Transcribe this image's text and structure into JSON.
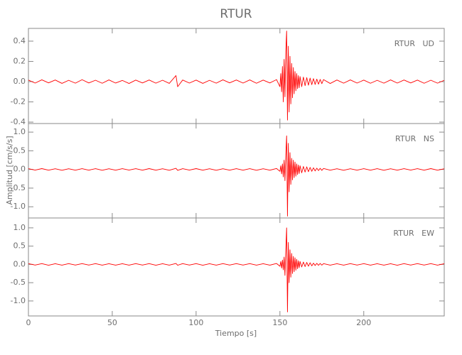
{
  "chart_data": [
    {
      "type": "line",
      "title": "RTUR",
      "label": "RTUR   UD",
      "color": "#ff0000",
      "xlim": [
        0,
        248
      ],
      "ylim": [
        -0.414,
        0.526
      ],
      "yticks": [
        -0.4,
        -0.2,
        {
          "value": 0,
          "label": "0.0"
        },
        0.2,
        0.4
      ],
      "x": [
        0,
        4,
        8,
        12,
        16,
        20,
        24,
        28,
        32,
        36,
        40,
        44,
        48,
        52,
        56,
        60,
        64,
        68,
        72,
        76,
        80,
        84,
        88,
        89,
        92,
        96,
        100,
        104,
        108,
        112,
        116,
        120,
        124,
        128,
        132,
        136,
        140,
        144,
        148,
        150,
        150.5,
        151,
        151.5,
        152,
        152.5,
        153,
        153.5,
        154,
        154.5,
        155,
        155.5,
        156,
        156.5,
        157,
        157.5,
        158,
        158.5,
        159,
        159.5,
        160,
        160.5,
        161,
        161.5,
        162,
        163,
        164,
        165,
        166,
        167,
        168,
        169,
        170,
        171,
        172,
        173,
        174,
        175,
        176,
        180,
        184,
        188,
        192,
        196,
        200,
        204,
        208,
        212,
        216,
        220,
        224,
        228,
        232,
        236,
        240,
        244,
        248
      ],
      "values": [
        0.015,
        -0.014,
        0.018,
        -0.012,
        0.016,
        -0.017,
        0.013,
        -0.015,
        0.019,
        -0.013,
        0.014,
        -0.016,
        0.017,
        -0.014,
        0.012,
        -0.018,
        0.015,
        -0.013,
        0.016,
        -0.015,
        0.014,
        -0.017,
        0.06,
        -0.05,
        0.016,
        -0.014,
        0.015,
        -0.017,
        0.013,
        -0.015,
        0.018,
        -0.012,
        0.016,
        -0.014,
        0.017,
        -0.016,
        0.015,
        -0.013,
        0.02,
        -0.05,
        0.08,
        -0.1,
        0.15,
        -0.2,
        0.22,
        -0.15,
        0.3,
        0.5,
        -0.38,
        0.35,
        -0.3,
        0.25,
        -0.22,
        0.18,
        -0.16,
        0.14,
        -0.12,
        0.1,
        -0.09,
        0.08,
        -0.07,
        0.06,
        -0.06,
        0.05,
        -0.05,
        0.045,
        -0.04,
        0.04,
        -0.035,
        0.035,
        -0.03,
        0.03,
        -0.028,
        0.025,
        -0.025,
        0.022,
        -0.02,
        0.02,
        -0.018,
        0.016,
        -0.015,
        0.017,
        -0.014,
        0.015,
        -0.016,
        0.013,
        -0.015,
        0.017,
        -0.014,
        0.016,
        -0.013,
        0.015,
        -0.016,
        0.014,
        -0.015,
        0.013
      ]
    },
    {
      "type": "line",
      "y_label": "Amplitud [cm/s/s]",
      "label": "RTUR   NS",
      "color": "#ff0000",
      "xlim": [
        0,
        248
      ],
      "ylim": [
        -1.3,
        1.23
      ],
      "yticks": [
        {
          "value": -1,
          "label": "-1.0"
        },
        -0.5,
        {
          "value": 0,
          "label": "0.0"
        },
        0.5,
        {
          "value": 1,
          "label": "1.0"
        }
      ],
      "x": [
        0,
        4,
        8,
        12,
        16,
        20,
        24,
        28,
        32,
        36,
        40,
        44,
        48,
        52,
        56,
        60,
        64,
        68,
        72,
        76,
        80,
        84,
        88,
        89,
        92,
        96,
        100,
        104,
        108,
        112,
        116,
        120,
        124,
        128,
        132,
        136,
        140,
        144,
        148,
        150,
        150.5,
        151,
        151.5,
        152,
        152.5,
        153,
        153.5,
        154,
        154.5,
        155,
        155.5,
        156,
        156.5,
        157,
        157.5,
        158,
        158.5,
        159,
        159.5,
        160,
        160.5,
        161,
        161.5,
        162,
        163,
        164,
        165,
        166,
        167,
        168,
        169,
        170,
        171,
        172,
        173,
        174,
        175,
        176,
        180,
        184,
        188,
        192,
        196,
        200,
        204,
        208,
        212,
        216,
        220,
        224,
        228,
        232,
        236,
        240,
        244,
        248
      ],
      "values": [
        0.02,
        -0.018,
        0.022,
        -0.02,
        0.019,
        -0.021,
        0.018,
        -0.02,
        0.021,
        -0.019,
        0.02,
        -0.022,
        0.018,
        -0.02,
        0.021,
        -0.018,
        0.02,
        -0.019,
        0.022,
        -0.02,
        0.019,
        -0.021,
        0.03,
        -0.025,
        0.02,
        -0.018,
        0.022,
        -0.02,
        0.019,
        -0.021,
        0.018,
        -0.02,
        0.021,
        -0.019,
        0.02,
        -0.022,
        0.018,
        -0.02,
        0.025,
        -0.05,
        0.1,
        -0.12,
        0.15,
        -0.2,
        0.25,
        -0.3,
        0.4,
        0.9,
        -1.25,
        0.7,
        -0.6,
        0.45,
        -0.4,
        0.3,
        -0.28,
        0.25,
        -0.22,
        0.2,
        -0.18,
        0.15,
        -0.14,
        0.12,
        -0.11,
        0.1,
        -0.09,
        0.08,
        -0.07,
        0.07,
        -0.06,
        0.055,
        -0.05,
        0.045,
        -0.04,
        0.035,
        -0.03,
        0.03,
        -0.025,
        0.025,
        -0.02,
        0.019,
        -0.021,
        0.018,
        -0.02,
        0.021,
        -0.019,
        0.02,
        -0.022,
        0.018,
        -0.02,
        0.021,
        -0.018,
        0.02,
        -0.019,
        0.022,
        -0.02,
        0.019
      ]
    },
    {
      "type": "line",
      "x_label": "Tiempo [s]",
      "label": "RTUR   EW",
      "color": "#ff0000",
      "xlim": [
        0,
        248
      ],
      "ylim": [
        -1.41,
        1.27
      ],
      "yticks": [
        {
          "value": -1,
          "label": "-1.0"
        },
        -0.5,
        {
          "value": 0,
          "label": "0.0"
        },
        0.5,
        {
          "value": 1,
          "label": "1.0"
        }
      ],
      "xticks": [
        0,
        50,
        100,
        150,
        200
      ],
      "x": [
        0,
        4,
        8,
        12,
        16,
        20,
        24,
        28,
        32,
        36,
        40,
        44,
        48,
        52,
        56,
        60,
        64,
        68,
        72,
        76,
        80,
        84,
        88,
        89,
        92,
        96,
        100,
        104,
        108,
        112,
        116,
        120,
        124,
        128,
        132,
        136,
        140,
        144,
        148,
        150,
        150.5,
        151,
        151.5,
        152,
        152.5,
        153,
        153.5,
        154,
        154.5,
        155,
        155.5,
        156,
        156.5,
        157,
        157.5,
        158,
        158.5,
        159,
        159.5,
        160,
        160.5,
        161,
        161.5,
        162,
        163,
        164,
        165,
        166,
        167,
        168,
        169,
        170,
        171,
        172,
        173,
        174,
        175,
        176,
        180,
        184,
        188,
        192,
        196,
        200,
        204,
        208,
        212,
        216,
        220,
        224,
        228,
        232,
        236,
        240,
        244,
        248
      ],
      "values": [
        0.021,
        -0.019,
        0.02,
        -0.022,
        0.018,
        -0.02,
        0.021,
        -0.018,
        0.02,
        -0.019,
        0.022,
        -0.02,
        0.019,
        -0.021,
        0.018,
        -0.02,
        0.021,
        -0.019,
        0.02,
        -0.022,
        0.018,
        -0.02,
        0.025,
        -0.022,
        0.021,
        -0.019,
        0.02,
        -0.022,
        0.018,
        -0.02,
        0.021,
        -0.018,
        0.02,
        -0.019,
        0.022,
        -0.02,
        0.019,
        -0.021,
        0.025,
        -0.05,
        0.08,
        -0.1,
        0.12,
        -0.15,
        0.2,
        -0.3,
        0.4,
        1.0,
        -1.3,
        0.6,
        -0.5,
        0.4,
        -0.35,
        0.3,
        -0.25,
        0.22,
        -0.2,
        0.18,
        -0.16,
        0.14,
        -0.12,
        0.1,
        -0.09,
        0.08,
        -0.07,
        0.065,
        -0.06,
        0.055,
        -0.05,
        0.045,
        -0.04,
        0.035,
        -0.03,
        0.03,
        -0.025,
        0.025,
        -0.02,
        0.02,
        -0.021,
        0.019,
        -0.02,
        0.022,
        -0.018,
        0.02,
        -0.021,
        0.018,
        -0.02,
        0.019,
        -0.022,
        0.02,
        -0.019,
        0.021,
        -0.018,
        0.02,
        -0.021,
        0.019
      ]
    }
  ]
}
